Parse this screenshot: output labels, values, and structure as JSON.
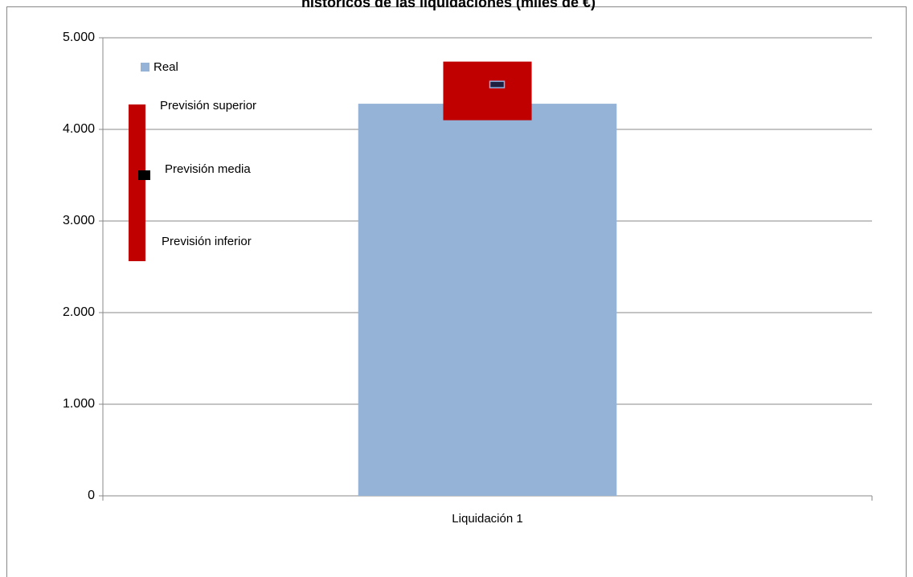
{
  "chart_data": {
    "type": "bar",
    "title": "históricos de las liquidaciones (miles de €)",
    "categories": [
      "Liquidación 1"
    ],
    "series": [
      {
        "name": "Real",
        "color": "#95b3d7",
        "values": [
          4280
        ]
      },
      {
        "name": "Previsión superior",
        "color": "#c00000",
        "values": [
          4740
        ]
      },
      {
        "name": "Previsión media",
        "color": "#000000",
        "values": [
          4490
        ]
      },
      {
        "name": "Previsión inferior",
        "color": "#c00000",
        "values": [
          4100
        ]
      }
    ],
    "ylim": [
      0,
      5000
    ],
    "yticks": [
      0,
      {
        "value": 1000,
        "label": "1.000"
      },
      {
        "value": 2000,
        "label": "2.000"
      },
      {
        "value": 3000,
        "label": "3.000"
      },
      {
        "value": 4000,
        "label": "4.000"
      },
      {
        "value": 5000,
        "label": "5.000"
      }
    ],
    "grid": true
  }
}
